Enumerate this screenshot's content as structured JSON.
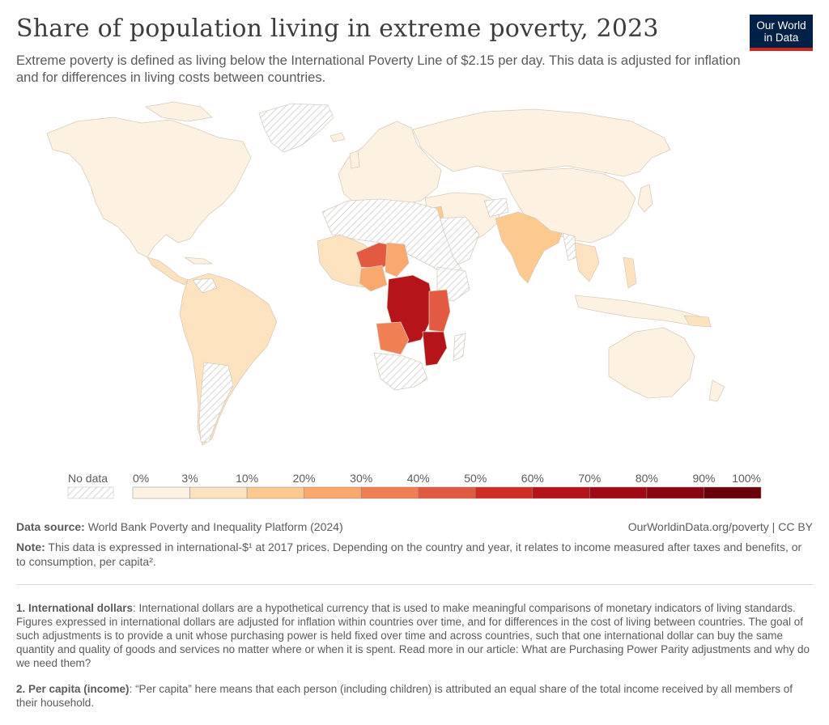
{
  "header": {
    "title": "Share of population living in extreme poverty, 2023",
    "subtitle": "Extreme poverty is defined as living below the International Poverty Line of $2.15 per day. This data is adjusted for inflation and for differences in living costs between countries."
  },
  "logo": {
    "line1": "Our World",
    "line2": "in Data"
  },
  "legend": {
    "no_data_label": "No data",
    "bins": [
      {
        "from": "0%",
        "to": "3%",
        "color": "#fdf2e2"
      },
      {
        "from": "3%",
        "to": "10%",
        "color": "#fde2c0"
      },
      {
        "from": "10%",
        "to": "20%",
        "color": "#fcc98f"
      },
      {
        "from": "20%",
        "to": "30%",
        "color": "#f9a86e"
      },
      {
        "from": "30%",
        "to": "40%",
        "color": "#f07f53"
      },
      {
        "from": "40%",
        "to": "50%",
        "color": "#e35a43"
      },
      {
        "from": "50%",
        "to": "60%",
        "color": "#cf2e25"
      },
      {
        "from": "60%",
        "to": "70%",
        "color": "#b5141a"
      },
      {
        "from": "70%",
        "to": "80%",
        "color": "#a10a14"
      },
      {
        "from": "80%",
        "to": "90%",
        "color": "#8c0610"
      },
      {
        "from": "90%",
        "to": "100%",
        "color": "#6a0009"
      }
    ],
    "tick_labels": [
      "0%",
      "3%",
      "10%",
      "20%",
      "30%",
      "40%",
      "50%",
      "60%",
      "70%",
      "80%",
      "90%",
      "100%"
    ]
  },
  "footer": {
    "source_label": "Data source:",
    "source_text": "World Bank Poverty and Inequality Platform (2024)",
    "credit": "OurWorldinData.org/poverty | CC BY",
    "note_label": "Note:",
    "note_text": "This data is expressed in international-$¹ at 2017 prices. Depending on the country and year, it relates to income measured after taxes and benefits, or to consumption, per capita².",
    "footnote1_label": "1. International dollars",
    "footnote1_text": ": International dollars are a hypothetical currency that is used to make meaningful comparisons of monetary indicators of living standards. Figures expressed in international dollars are adjusted for inflation within countries over time, and for differences in the cost of living between countries. The goal of such adjustments is to provide a unit whose purchasing power is held fixed over time and across countries, such that one international dollar can buy the same quantity and quality of goods and services no matter where or when it is spent. Read more in our article: What are Purchasing Power Parity adjustments and why do we need them?",
    "footnote2_label": "2. Per capita (income)",
    "footnote2_text": ": “Per capita” here means that each person (including children) is attributed an equal share of the total income received by all members of their household."
  }
}
